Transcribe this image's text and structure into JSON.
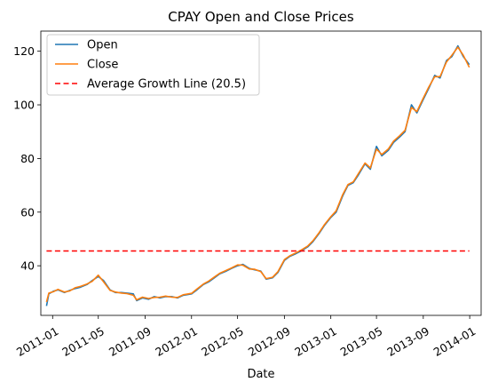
{
  "chart_data": {
    "type": "line",
    "title": "CPAY Open and Close Prices",
    "xlabel": "Date",
    "ylabel": "",
    "xlim": [
      "2010-12-01",
      "2014-01-31"
    ],
    "ylim": [
      21.5,
      127.5
    ],
    "x_ticks": [
      "2011-01",
      "2011-05",
      "2011-09",
      "2012-01",
      "2012-05",
      "2012-09",
      "2013-01",
      "2013-05",
      "2013-09",
      "2014-01"
    ],
    "y_ticks": [
      40,
      60,
      80,
      100,
      120
    ],
    "grid": false,
    "legend_position": "upper-left",
    "series": [
      {
        "name": "Open",
        "color": "#1f77b4",
        "style": "solid",
        "points": [
          [
            "2010-12-16",
            25.0
          ],
          [
            "2010-12-22",
            29.5
          ],
          [
            "2011-01-03",
            30.5
          ],
          [
            "2011-01-15",
            31.0
          ],
          [
            "2011-02-01",
            30.0
          ],
          [
            "2011-02-15",
            30.8
          ],
          [
            "2011-03-01",
            31.5
          ],
          [
            "2011-03-15",
            32.0
          ],
          [
            "2011-04-01",
            33.0
          ],
          [
            "2011-04-15",
            34.5
          ],
          [
            "2011-05-01",
            36.0
          ],
          [
            "2011-05-15",
            34.5
          ],
          [
            "2011-06-01",
            31.0
          ],
          [
            "2011-06-15",
            30.0
          ],
          [
            "2011-07-01",
            30.0
          ],
          [
            "2011-07-15",
            29.8
          ],
          [
            "2011-08-01",
            29.5
          ],
          [
            "2011-08-10",
            27.0
          ],
          [
            "2011-08-25",
            28.0
          ],
          [
            "2011-09-10",
            27.5
          ],
          [
            "2011-09-25",
            28.5
          ],
          [
            "2011-10-10",
            28.0
          ],
          [
            "2011-10-25",
            28.5
          ],
          [
            "2011-11-10",
            28.5
          ],
          [
            "2011-11-25",
            28.0
          ],
          [
            "2011-12-10",
            29.0
          ],
          [
            "2012-01-01",
            29.5
          ],
          [
            "2012-01-15",
            31.0
          ],
          [
            "2012-02-01",
            33.0
          ],
          [
            "2012-02-15",
            34.0
          ],
          [
            "2012-03-01",
            35.5
          ],
          [
            "2012-03-15",
            37.0
          ],
          [
            "2012-04-01",
            38.0
          ],
          [
            "2012-04-15",
            39.0
          ],
          [
            "2012-05-01",
            40.0
          ],
          [
            "2012-05-15",
            40.5
          ],
          [
            "2012-06-01",
            39.0
          ],
          [
            "2012-06-15",
            38.5
          ],
          [
            "2012-07-01",
            38.0
          ],
          [
            "2012-07-15",
            35.0
          ],
          [
            "2012-08-01",
            35.5
          ],
          [
            "2012-08-15",
            37.5
          ],
          [
            "2012-09-01",
            42.0
          ],
          [
            "2012-09-15",
            43.5
          ],
          [
            "2012-10-01",
            44.5
          ],
          [
            "2012-10-15",
            45.5
          ],
          [
            "2012-11-01",
            47.0
          ],
          [
            "2012-11-15",
            49.0
          ],
          [
            "2012-12-01",
            52.0
          ],
          [
            "2012-12-15",
            55.0
          ],
          [
            "2013-01-01",
            58.0
          ],
          [
            "2013-01-15",
            60.0
          ],
          [
            "2013-02-01",
            66.0
          ],
          [
            "2013-02-15",
            70.0
          ],
          [
            "2013-03-01",
            71.0
          ],
          [
            "2013-03-15",
            74.0
          ],
          [
            "2013-04-01",
            78.0
          ],
          [
            "2013-04-15",
            76.0
          ],
          [
            "2013-05-01",
            84.5
          ],
          [
            "2013-05-15",
            81.0
          ],
          [
            "2013-06-01",
            83.0
          ],
          [
            "2013-06-15",
            86.0
          ],
          [
            "2013-07-01",
            88.0
          ],
          [
            "2013-07-15",
            90.0
          ],
          [
            "2013-08-01",
            100.0
          ],
          [
            "2013-08-15",
            97.0
          ],
          [
            "2013-09-01",
            102.0
          ],
          [
            "2013-09-15",
            106.0
          ],
          [
            "2013-10-01",
            111.0
          ],
          [
            "2013-10-15",
            110.0
          ],
          [
            "2013-11-01",
            116.5
          ],
          [
            "2013-11-15",
            118.0
          ],
          [
            "2013-12-01",
            122.0
          ],
          [
            "2013-12-15",
            118.0
          ],
          [
            "2013-12-31",
            115.0
          ]
        ]
      },
      {
        "name": "Close",
        "color": "#ff7f0e",
        "style": "solid",
        "points": [
          [
            "2010-12-16",
            26.5
          ],
          [
            "2010-12-22",
            29.8
          ],
          [
            "2011-01-03",
            30.3
          ],
          [
            "2011-01-15",
            31.2
          ],
          [
            "2011-02-01",
            30.2
          ],
          [
            "2011-02-15",
            30.6
          ],
          [
            "2011-03-01",
            31.8
          ],
          [
            "2011-03-15",
            32.3
          ],
          [
            "2011-04-01",
            33.2
          ],
          [
            "2011-04-15",
            34.2
          ],
          [
            "2011-05-01",
            36.5
          ],
          [
            "2011-05-15",
            34.0
          ],
          [
            "2011-06-01",
            30.8
          ],
          [
            "2011-06-15",
            30.2
          ],
          [
            "2011-07-01",
            29.8
          ],
          [
            "2011-07-15",
            29.6
          ],
          [
            "2011-08-01",
            29.0
          ],
          [
            "2011-08-10",
            27.3
          ],
          [
            "2011-08-25",
            28.3
          ],
          [
            "2011-09-10",
            27.8
          ],
          [
            "2011-09-25",
            28.2
          ],
          [
            "2011-10-10",
            28.3
          ],
          [
            "2011-10-25",
            28.7
          ],
          [
            "2011-11-10",
            28.3
          ],
          [
            "2011-11-25",
            28.2
          ],
          [
            "2011-12-10",
            29.2
          ],
          [
            "2012-01-01",
            29.7
          ],
          [
            "2012-01-15",
            31.3
          ],
          [
            "2012-02-01",
            33.2
          ],
          [
            "2012-02-15",
            34.3
          ],
          [
            "2012-03-01",
            35.8
          ],
          [
            "2012-03-15",
            37.2
          ],
          [
            "2012-04-01",
            38.3
          ],
          [
            "2012-04-15",
            39.2
          ],
          [
            "2012-05-01",
            40.3
          ],
          [
            "2012-05-15",
            40.2
          ],
          [
            "2012-06-01",
            38.8
          ],
          [
            "2012-06-15",
            38.7
          ],
          [
            "2012-07-01",
            37.8
          ],
          [
            "2012-07-15",
            35.2
          ],
          [
            "2012-08-01",
            35.7
          ],
          [
            "2012-08-15",
            37.8
          ],
          [
            "2012-09-01",
            42.3
          ],
          [
            "2012-09-15",
            43.7
          ],
          [
            "2012-10-01",
            44.8
          ],
          [
            "2012-10-15",
            45.8
          ],
          [
            "2012-11-01",
            47.3
          ],
          [
            "2012-11-15",
            49.3
          ],
          [
            "2012-12-01",
            52.3
          ],
          [
            "2012-12-15",
            55.3
          ],
          [
            "2013-01-01",
            58.3
          ],
          [
            "2013-01-15",
            60.5
          ],
          [
            "2013-02-01",
            66.5
          ],
          [
            "2013-02-15",
            70.3
          ],
          [
            "2013-03-01",
            71.3
          ],
          [
            "2013-03-15",
            74.5
          ],
          [
            "2013-04-01",
            78.3
          ],
          [
            "2013-04-15",
            76.5
          ],
          [
            "2013-05-01",
            83.5
          ],
          [
            "2013-05-15",
            81.5
          ],
          [
            "2013-06-01",
            83.5
          ],
          [
            "2013-06-15",
            86.5
          ],
          [
            "2013-07-01",
            88.5
          ],
          [
            "2013-07-15",
            90.5
          ],
          [
            "2013-08-01",
            99.0
          ],
          [
            "2013-08-15",
            97.5
          ],
          [
            "2013-09-01",
            102.5
          ],
          [
            "2013-09-15",
            106.5
          ],
          [
            "2013-10-01",
            110.5
          ],
          [
            "2013-10-15",
            110.5
          ],
          [
            "2013-11-01",
            116.0
          ],
          [
            "2013-11-15",
            118.5
          ],
          [
            "2013-12-01",
            121.5
          ],
          [
            "2013-12-15",
            118.5
          ],
          [
            "2013-12-31",
            114.0
          ]
        ]
      },
      {
        "name": "Average Growth Line (20.5)",
        "color": "#ff0000",
        "style": "dashed",
        "points": [
          [
            "2010-12-16",
            45.5
          ],
          [
            "2013-12-31",
            45.5
          ]
        ]
      }
    ]
  }
}
